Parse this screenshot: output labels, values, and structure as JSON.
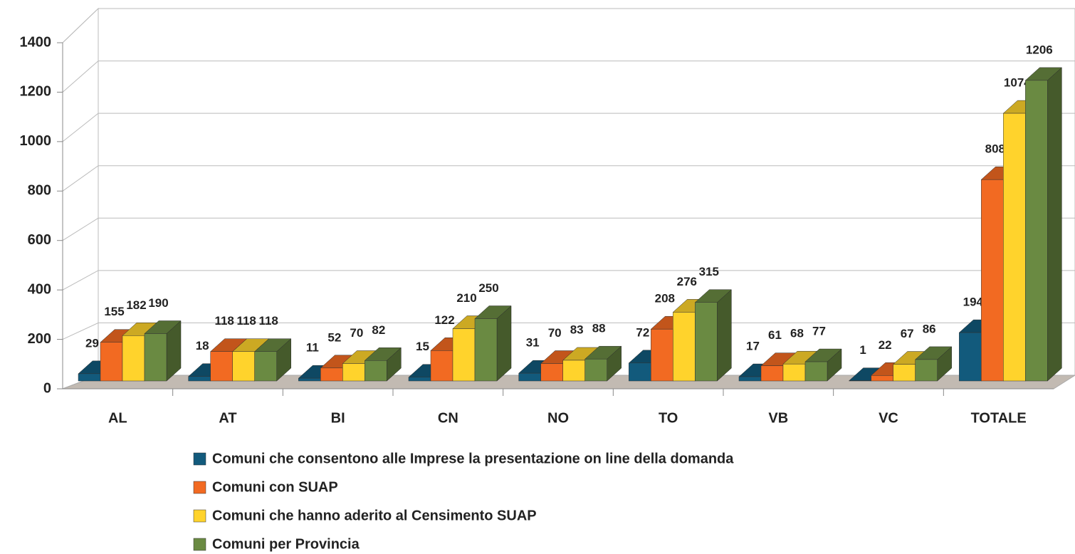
{
  "chart_data": {
    "type": "bar3d",
    "categories": [
      "AL",
      "AT",
      "BI",
      "CN",
      "NO",
      "TO",
      "VB",
      "VC",
      "TOTALE"
    ],
    "series": [
      {
        "name": "Comuni che consentono alle Imprese la presentazione on line della domanda",
        "color": "#125a7c",
        "values": [
          29,
          18,
          11,
          15,
          31,
          72,
          17,
          1,
          194
        ]
      },
      {
        "name": "Comuni con SUAP",
        "color": "#f26a22",
        "values": [
          155,
          118,
          52,
          122,
          70,
          208,
          61,
          22,
          808
        ]
      },
      {
        "name": "Comuni che hanno aderito al Censimento  SUAP",
        "color": "#ffd32c",
        "values": [
          182,
          118,
          70,
          210,
          83,
          276,
          68,
          67,
          1074
        ]
      },
      {
        "name": "Comuni per Provincia",
        "color": "#6a8a42",
        "values": [
          190,
          118,
          82,
          250,
          88,
          315,
          77,
          86,
          1206
        ]
      }
    ],
    "ylim": [
      0,
      1400
    ],
    "yticks": [
      0,
      200,
      400,
      600,
      800,
      1000,
      1200,
      1400
    ],
    "grid": true
  }
}
